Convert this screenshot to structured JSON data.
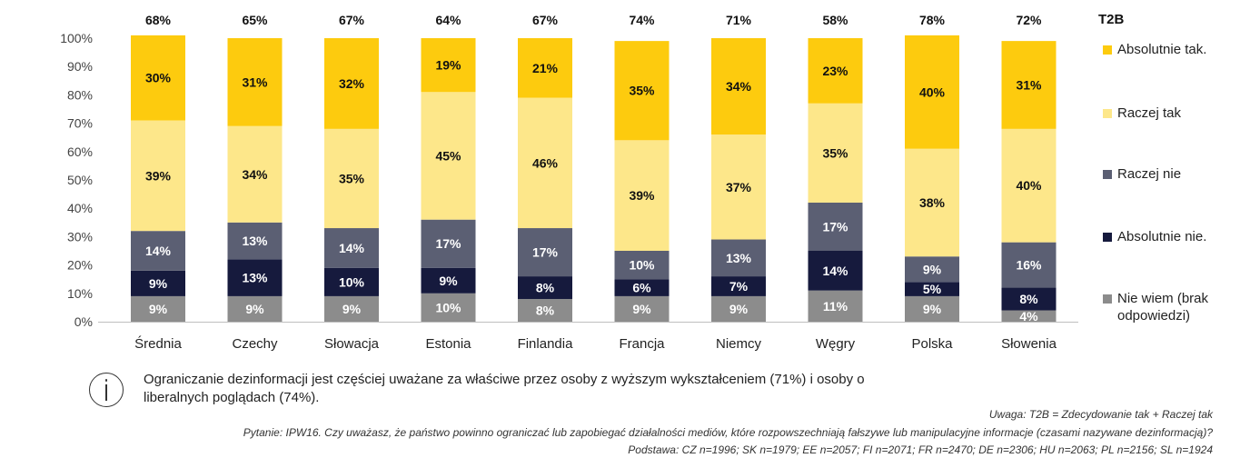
{
  "chart_data": {
    "type": "bar",
    "stacked": true,
    "categories": [
      "Średnia",
      "Czechy",
      "Słowacja",
      "Estonia",
      "Finlandia",
      "Francja",
      "Niemcy",
      "Węgry",
      "Polska",
      "Słowenia"
    ],
    "series": [
      {
        "name": "Nie wiem (brak odpowiedzi)",
        "color": "#8c8c8c",
        "label_color": "#ffffff",
        "values": [
          9,
          9,
          9,
          10,
          8,
          9,
          9,
          11,
          9,
          4
        ]
      },
      {
        "name": "Absolutnie nie.",
        "color": "#161a3d",
        "label_color": "#ffffff",
        "values": [
          9,
          13,
          10,
          9,
          8,
          6,
          7,
          14,
          5,
          8
        ]
      },
      {
        "name": "Raczej nie",
        "color": "#5b5f73",
        "label_color": "#ffffff",
        "values": [
          14,
          13,
          14,
          17,
          17,
          10,
          13,
          17,
          9,
          16
        ]
      },
      {
        "name": "Raczej tak",
        "color": "#fde78a",
        "label_color": "#111111",
        "values": [
          39,
          34,
          35,
          45,
          46,
          39,
          37,
          35,
          38,
          40
        ]
      },
      {
        "name": "Absolutnie tak.",
        "color": "#fdcb0e",
        "label_color": "#111111",
        "values": [
          30,
          31,
          32,
          19,
          21,
          35,
          34,
          23,
          40,
          31
        ]
      }
    ],
    "value_labels": [
      [
        "9%",
        "9%",
        "9%",
        "10%",
        "8%",
        "9%",
        "9%",
        "11%",
        "9%",
        "4%"
      ],
      [
        "9%",
        "13%",
        "10%",
        "9%",
        "8%",
        "6%",
        "7%",
        "14%",
        "5%",
        "8%"
      ],
      [
        "14%",
        "13%",
        "14%",
        "17%",
        "17%",
        "10%",
        "13%",
        "17%",
        "9%",
        "16%"
      ],
      [
        "39%",
        "34%",
        "35%",
        "45%",
        "46%",
        "39%",
        "37%",
        "35%",
        "38%",
        "40%"
      ],
      [
        "30%",
        "31%",
        "32%",
        "19%",
        "21%",
        "35%",
        "34%",
        "23%",
        "40%",
        "31%"
      ]
    ],
    "t2b_title": "T2B",
    "t2b_values": [
      "68%",
      "65%",
      "67%",
      "64%",
      "67%",
      "74%",
      "71%",
      "58%",
      "78%",
      "72%"
    ],
    "y_ticks": [
      "0%",
      "10%",
      "20%",
      "30%",
      "40%",
      "50%",
      "60%",
      "70%",
      "80%",
      "90%",
      "100%"
    ],
    "ylim": [
      0,
      100
    ],
    "grid": false,
    "legend_position": "right",
    "title": "",
    "xlabel": "",
    "ylabel": ""
  },
  "info": {
    "icon": "info-icon",
    "text": "Ograniczanie dezinformacji jest częściej uważane za właściwe przez osoby z wyższym wykształceniem (71%) i osoby o liberalnych poglądach (74%)."
  },
  "notes": {
    "uwaga": "Uwaga: T2B = Zdecydowanie tak + Raczej tak",
    "pytanie": "Pytanie: IPW16. Czy uważasz, że państwo powinno ograniczać lub zapobiegać działalności mediów, które rozpowszechniają fałszywe lub manipulacyjne informacje (czasami nazywane dezinformacją)?",
    "podstawa": "Podstawa: CZ n=1996; SK n=1979; EE n=2057; FI n=2071; FR n=2470; DE n=2306; HU n=2063; PL n=2156; SL n=1924"
  }
}
